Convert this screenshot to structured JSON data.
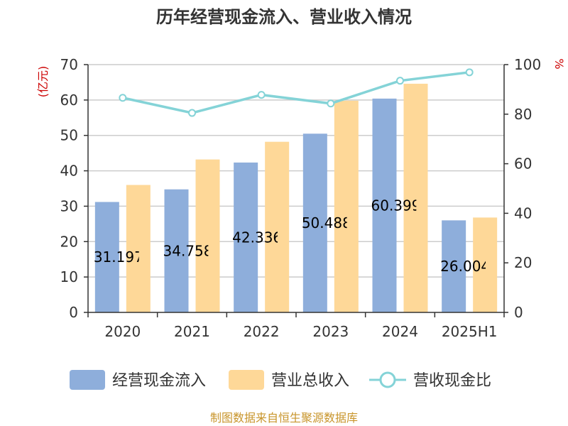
{
  "chart_data": {
    "type": "bar",
    "title": "历年经营现金流入、营业收入情况",
    "categories": [
      "2020",
      "2021",
      "2022",
      "2023",
      "2024",
      "2025H1"
    ],
    "series": [
      {
        "name": "经营现金流入",
        "type": "bar",
        "axis": "left",
        "values": [
          31.197,
          34.758,
          42.336,
          50.488,
          60.399,
          26.004
        ],
        "labels": [
          "31.197",
          "34.758",
          "42.336",
          "50.488",
          "60.399",
          "26.004"
        ]
      },
      {
        "name": "营业总收入",
        "type": "bar",
        "axis": "left",
        "values": [
          36.0,
          43.2,
          48.2,
          59.8,
          64.6,
          26.8
        ]
      },
      {
        "name": "营收现金比",
        "type": "line",
        "axis": "right",
        "values": [
          86.6,
          80.5,
          87.8,
          84.3,
          93.5,
          96.9
        ]
      }
    ],
    "y_left": {
      "unit": "(亿元)",
      "lim": [
        0,
        70
      ],
      "ticks": [
        0,
        10,
        20,
        30,
        40,
        50,
        60,
        70
      ]
    },
    "y_right": {
      "unit": "%",
      "lim": [
        0,
        100
      ],
      "ticks": [
        0,
        20,
        40,
        60,
        80,
        100
      ]
    },
    "grid": true,
    "legend_position": "bottom",
    "colors": {
      "bar1": "#8eaedb",
      "bar2": "#fed898",
      "line": "#84d3d7",
      "unit": "#cc0000",
      "source": "#c8952b"
    },
    "source": "制图数据来自恒生聚源数据库"
  }
}
